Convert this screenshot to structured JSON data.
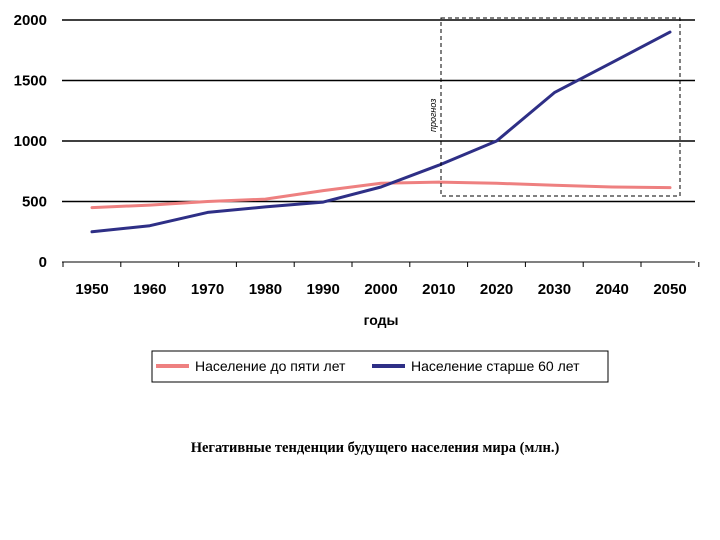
{
  "caption": "Негативные тенденции будущего населения мира (млн.)",
  "chart_data": {
    "type": "line",
    "xlabel": "годы",
    "ylabel": "",
    "ylim": [
      0,
      2000
    ],
    "y_ticks": [
      "0",
      "500",
      "1000",
      "1500",
      "2000"
    ],
    "x_ticks": [
      "1950",
      "1960",
      "1970",
      "1980",
      "1990",
      "2000",
      "2010",
      "2020",
      "2030",
      "2040",
      "2050"
    ],
    "grid": "horizontal",
    "legend_position": "bottom",
    "forecast_region": {
      "label": "прогноз",
      "x_from": 2010,
      "x_to": 2050
    },
    "series": [
      {
        "name": "Население до пяти лет",
        "color": "#ee8080",
        "x": [
          1950,
          1960,
          1970,
          1980,
          1990,
          2000,
          2010,
          2020,
          2030,
          2040,
          2050
        ],
        "y": [
          450,
          470,
          500,
          520,
          590,
          650,
          660,
          650,
          635,
          620,
          615
        ]
      },
      {
        "name": "Население старше 60 лет",
        "color": "#2e2f86",
        "x": [
          1950,
          1960,
          1970,
          1980,
          1990,
          2000,
          2010,
          2020,
          2030,
          2040,
          2050
        ],
        "y": [
          250,
          300,
          410,
          455,
          495,
          620,
          800,
          1000,
          1400,
          1650,
          1900
        ]
      }
    ]
  }
}
